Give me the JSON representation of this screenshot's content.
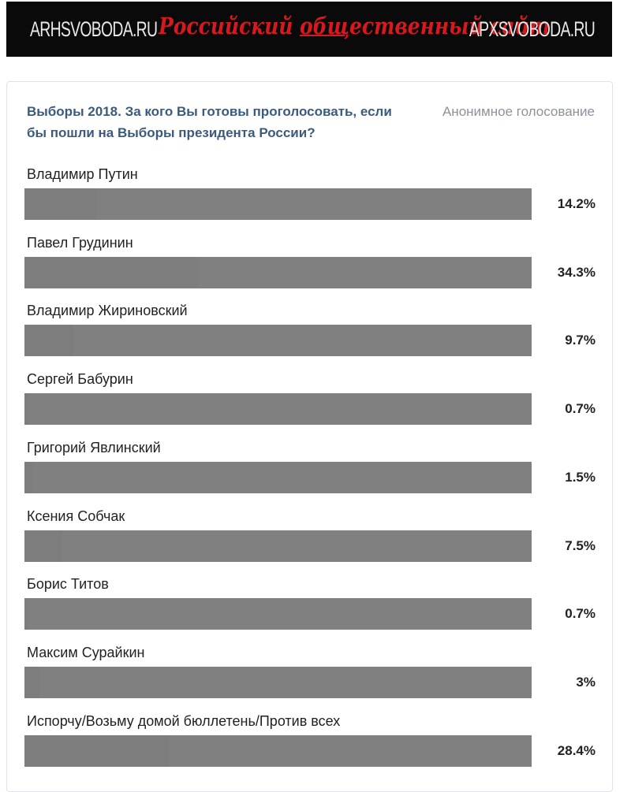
{
  "banner": {
    "site_left": "ARHSVOBODA.RU",
    "tagline_prefix": "Российский ",
    "tagline_underlined": "общ",
    "tagline_suffix": "ественный сайт",
    "site_right": "APXSVOBODA.RU"
  },
  "poll": {
    "title": "Выборы 2018. За кого Вы готовы проголосовать, если бы пошли на Выборы президента России?",
    "type": "Анонимное голосование",
    "options": [
      {
        "label": "Владимир Путин",
        "percent_text": "14.2%",
        "percent": 14.2
      },
      {
        "label": "Павел Грудинин",
        "percent_text": "34.3%",
        "percent": 34.3
      },
      {
        "label": "Владимир Жириновский",
        "percent_text": "9.7%",
        "percent": 9.7
      },
      {
        "label": "Сергей Бабурин",
        "percent_text": "0.7%",
        "percent": 0.7
      },
      {
        "label": "Григорий Явлинский",
        "percent_text": "1.5%",
        "percent": 1.5
      },
      {
        "label": "Ксения Собчак",
        "percent_text": "7.5%",
        "percent": 7.5
      },
      {
        "label": "Борис Титов",
        "percent_text": "0.7%",
        "percent": 0.7
      },
      {
        "label": "Максим Сурайкин",
        "percent_text": "3%",
        "percent": 3
      },
      {
        "label": "Испорчу/Возьму домой бюллетень/Против всех",
        "percent_text": "28.4%",
        "percent": 28.4
      }
    ]
  },
  "colors": {
    "banner_bg": "#0a0a0a",
    "tagline": "#d7191f",
    "poll_title": "#3b5a7d",
    "bar": "#808080"
  }
}
